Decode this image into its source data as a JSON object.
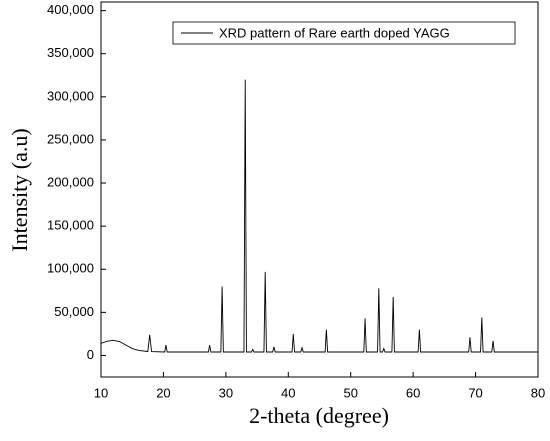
{
  "chart_data": {
    "type": "line",
    "xlabel": "2-theta (degree)",
    "ylabel": "Intensity (a.u)",
    "x": [
      10,
      11,
      12,
      13,
      14,
      15,
      16,
      17.5,
      17.8,
      18.1,
      20.2,
      20.4,
      20.6,
      27.2,
      27.4,
      27.6,
      29.2,
      29.4,
      29.6,
      32.9,
      33.1,
      33.3,
      34.1,
      34.3,
      34.5,
      36.1,
      36.3,
      36.5,
      37.5,
      37.7,
      37.9,
      40.6,
      40.8,
      41.0,
      42.0,
      42.2,
      42.4,
      45.9,
      46.1,
      46.3,
      52.1,
      52.3,
      52.5,
      54.3,
      54.5,
      54.7,
      55.1,
      55.3,
      55.5,
      56.6,
      56.8,
      57.0,
      60.8,
      61.0,
      61.2,
      68.9,
      69.1,
      69.3,
      70.8,
      71.0,
      71.2,
      72.6,
      72.8,
      73.0,
      80
    ],
    "series": [
      {
        "name": "XRD pattern of Rare earth doped YAGG",
        "color": "#000000",
        "values": [
          14000,
          16500,
          17500,
          16000,
          12000,
          8000,
          6000,
          4500,
          24000,
          4500,
          4000,
          12000,
          4000,
          4000,
          12000,
          4000,
          4000,
          80000,
          4000,
          4000,
          320000,
          4000,
          4000,
          7000,
          4000,
          4000,
          97000,
          4000,
          4000,
          10000,
          4000,
          4000,
          25000,
          4000,
          4000,
          9000,
          4000,
          4000,
          30000,
          4000,
          4000,
          43000,
          4000,
          4000,
          78000,
          4000,
          4000,
          8000,
          4000,
          4000,
          68000,
          4000,
          4000,
          30000,
          4000,
          4000,
          21000,
          4000,
          4000,
          44000,
          4000,
          4000,
          17000,
          4000,
          4000
        ]
      }
    ],
    "xlim": [
      10,
      80
    ],
    "xticks": [
      10,
      20,
      30,
      40,
      50,
      60,
      70,
      80
    ],
    "ylim": [
      -25000,
      410000
    ],
    "yticks": [
      0,
      {
        "value": 50000,
        "label": "50,000"
      },
      {
        "value": 100000,
        "label": "100,000"
      },
      {
        "value": 150000,
        "label": "150,000"
      },
      {
        "value": 200000,
        "label": "200,000"
      },
      {
        "value": 250000,
        "label": "250,000"
      },
      {
        "value": 300000,
        "label": "300,000"
      },
      {
        "value": 350000,
        "label": "350,000"
      },
      {
        "value": 400000,
        "label": "400,000"
      }
    ],
    "legend": "upper right",
    "grid": false
  }
}
